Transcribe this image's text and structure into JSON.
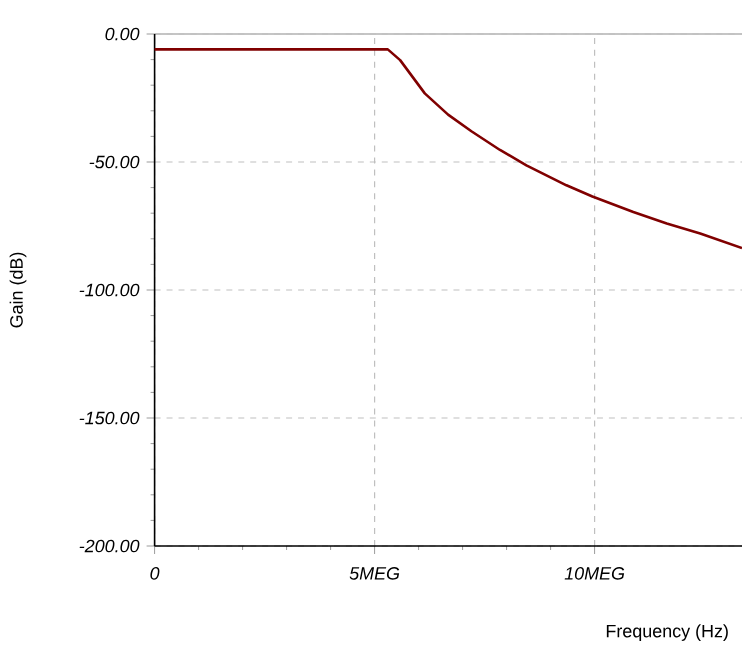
{
  "chart_data": {
    "type": "line",
    "xlabel": "Frequency (Hz)",
    "ylabel": "Gain (dB)",
    "x": [
      0,
      5.3,
      5.58,
      6.14,
      6.67,
      7.2,
      7.85,
      8.45,
      9.36,
      9.95,
      10.88,
      11.64,
      12.4,
      13.35
    ],
    "series": [
      {
        "color": "#800000",
        "values": [
          -6,
          -6,
          -10.2,
          -23.2,
          -31.5,
          -38,
          -45.3,
          -51.3,
          -59.1,
          -63.5,
          -69.5,
          -74,
          -77.9,
          -83.6
        ]
      }
    ],
    "xlim": [
      0,
      13.35
    ],
    "ylim": [
      -200,
      0
    ],
    "xticks": [
      0,
      {
        "value": 5,
        "label": "5MEG"
      },
      {
        "value": 10,
        "label": "10MEG"
      }
    ],
    "yticks": [
      {
        "value": 0,
        "label": "0.00"
      },
      {
        "value": -50,
        "label": "-50.00"
      },
      {
        "value": -100,
        "label": "-100.00"
      },
      {
        "value": -150,
        "label": "-150.00"
      },
      {
        "value": -200,
        "label": "-200.00"
      }
    ],
    "grid": true,
    "line_style": "solid"
  }
}
